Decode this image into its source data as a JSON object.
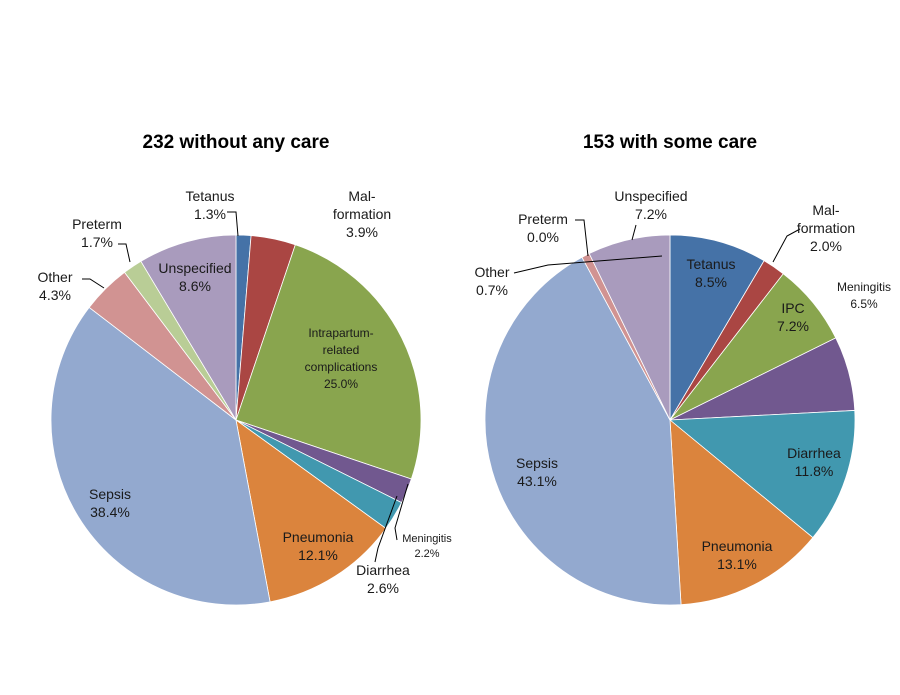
{
  "chart_data": [
    {
      "type": "pie",
      "title": "232 without any care",
      "slices": [
        {
          "name": "Tetanus",
          "label": [
            "Tetanus",
            "1.3%"
          ],
          "value": 1.3,
          "color": "#4572A7"
        },
        {
          "name": "Mal-formation",
          "label": [
            "Mal-",
            "formation",
            "3.9%"
          ],
          "value": 3.9,
          "color": "#AA4643"
        },
        {
          "name": "Intrapartum-related complications",
          "label": [
            "Intrapartum-",
            "related",
            "complications",
            "25.0%"
          ],
          "value": 25.0,
          "color": "#89A54E"
        },
        {
          "name": "Meningitis",
          "label": [
            "Meningitis",
            "2.2%"
          ],
          "value": 2.2,
          "color": "#71588F"
        },
        {
          "name": "Diarrhea",
          "label": [
            "Diarrhea",
            "2.6%"
          ],
          "value": 2.6,
          "color": "#4198AF"
        },
        {
          "name": "Pneumonia",
          "label": [
            "Pneumonia",
            "12.1%"
          ],
          "value": 12.1,
          "color": "#DB843D"
        },
        {
          "name": "Sepsis",
          "label": [
            "Sepsis",
            "38.4%"
          ],
          "value": 38.4,
          "color": "#93A9CF"
        },
        {
          "name": "Other",
          "label": [
            "Other",
            "4.3%"
          ],
          "value": 4.3,
          "color": "#D19392"
        },
        {
          "name": "Preterm",
          "label": [
            "Preterm",
            "1.7%"
          ],
          "value": 1.7,
          "color": "#B9CD96"
        },
        {
          "name": "Unspecified",
          "label": [
            "Unspecified",
            "8.6%"
          ],
          "value": 8.6,
          "color": "#A99BBD"
        }
      ]
    },
    {
      "type": "pie",
      "title": "153 with some care",
      "slices": [
        {
          "name": "Tetanus",
          "label": [
            "Tetanus",
            "8.5%"
          ],
          "value": 8.5,
          "color": "#4572A7"
        },
        {
          "name": "Mal-formation",
          "label": [
            "Mal-",
            "formation",
            "2.0%"
          ],
          "value": 2.0,
          "color": "#AA4643"
        },
        {
          "name": "IPC",
          "label": [
            "IPC",
            "7.2%"
          ],
          "value": 7.2,
          "color": "#89A54E"
        },
        {
          "name": "Meningitis",
          "label": [
            "Meningitis",
            "6.5%"
          ],
          "value": 6.5,
          "color": "#71588F"
        },
        {
          "name": "Diarrhea",
          "label": [
            "Diarrhea",
            "11.8%"
          ],
          "value": 11.8,
          "color": "#4198AF"
        },
        {
          "name": "Pneumonia",
          "label": [
            "Pneumonia",
            "13.1%"
          ],
          "value": 13.1,
          "color": "#DB843D"
        },
        {
          "name": "Sepsis",
          "label": [
            "Sepsis",
            "43.1%"
          ],
          "value": 43.1,
          "color": "#93A9CF"
        },
        {
          "name": "Other",
          "label": [
            "Other",
            "0.7%"
          ],
          "value": 0.7,
          "color": "#D19392"
        },
        {
          "name": "Preterm",
          "label": [
            "Preterm",
            "0.0%"
          ],
          "value": 0.0,
          "color": "#B9CD96"
        },
        {
          "name": "Unspecified",
          "label": [
            "Unspecified",
            "7.2%"
          ],
          "value": 7.2,
          "color": "#A99BBD"
        }
      ]
    }
  ]
}
